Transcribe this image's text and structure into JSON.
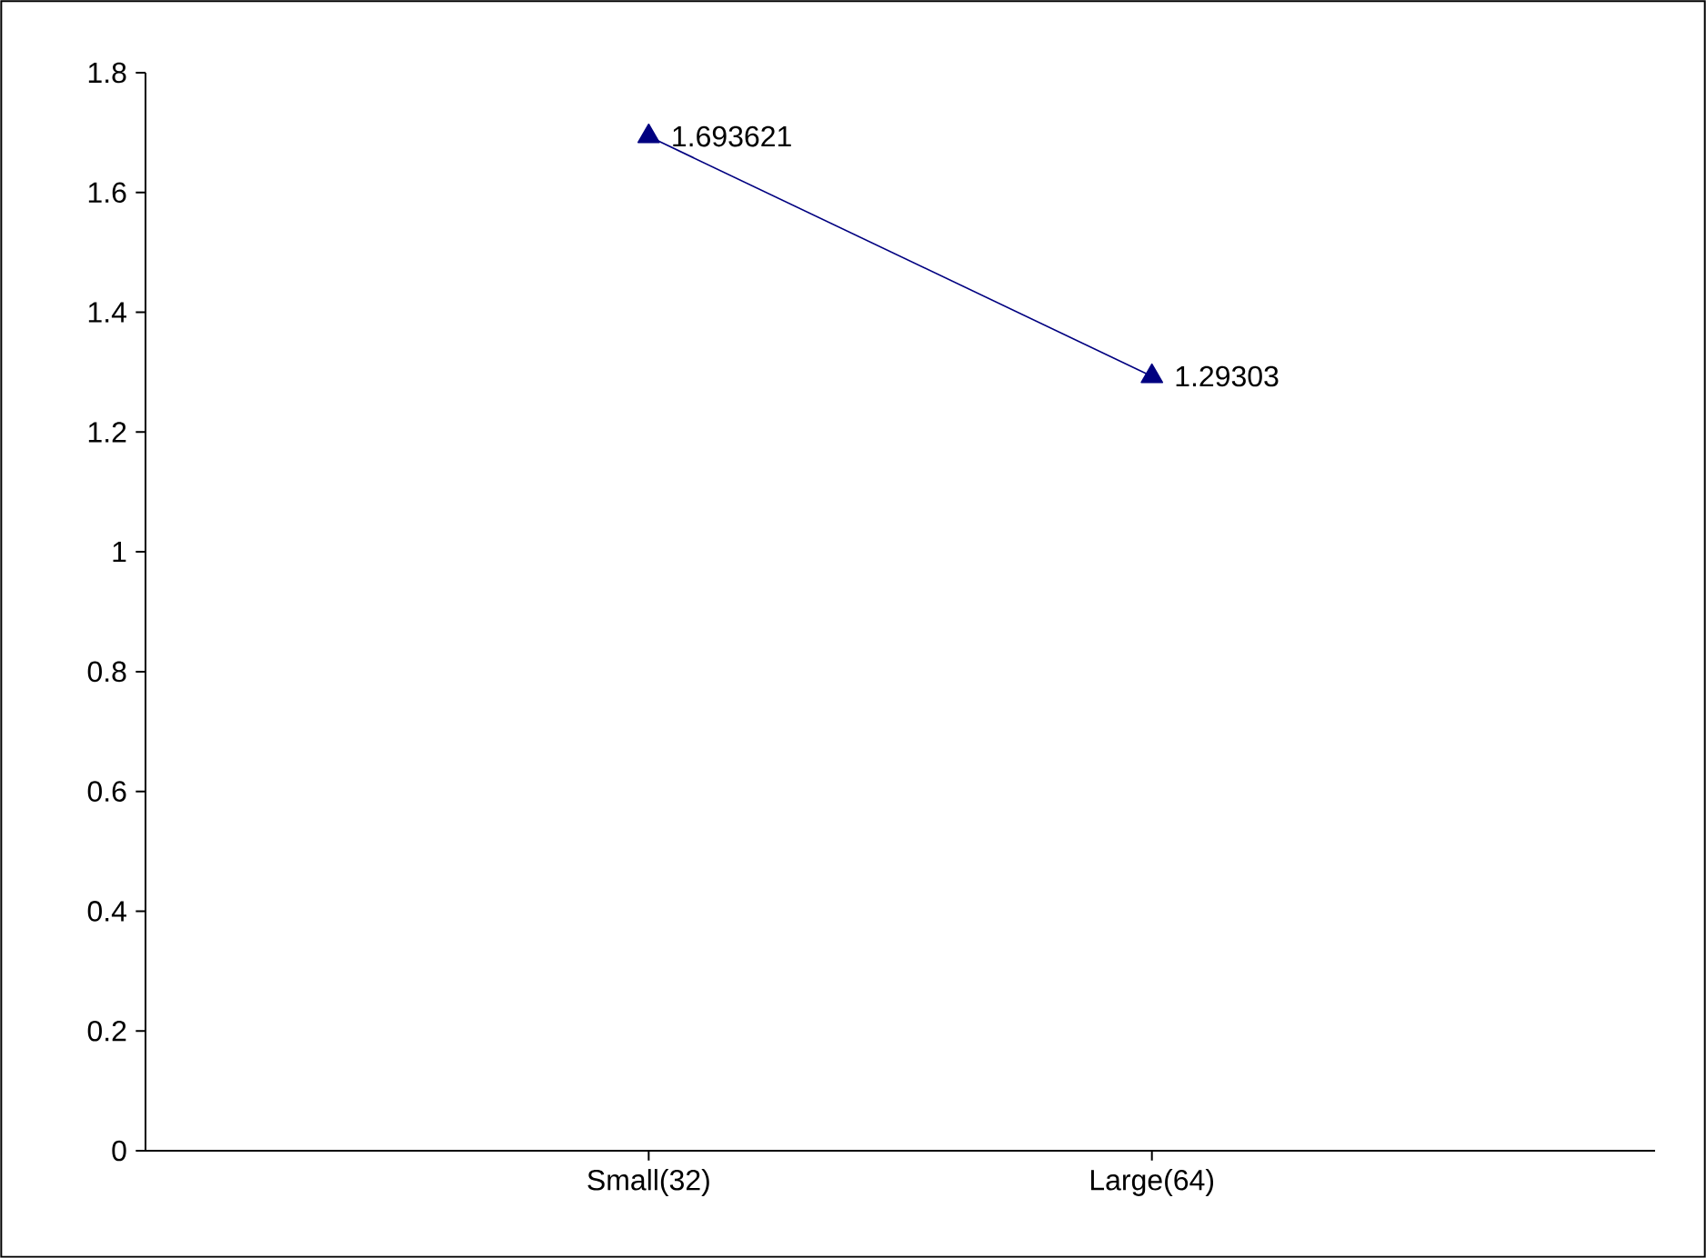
{
  "chart_data": {
    "type": "line",
    "categories": [
      "Small(32)",
      "Large(64)"
    ],
    "series": [
      {
        "color": "#000080",
        "values": [
          1.693621,
          1.29303
        ]
      }
    ],
    "ylim": [
      0,
      1.8
    ],
    "yticks": [
      0,
      0.2,
      0.4,
      0.6,
      0.8,
      1,
      1.2,
      1.4,
      1.6,
      1.8
    ],
    "marker": "triangle",
    "line_style": "solid",
    "data_labels": true,
    "grid": false
  }
}
